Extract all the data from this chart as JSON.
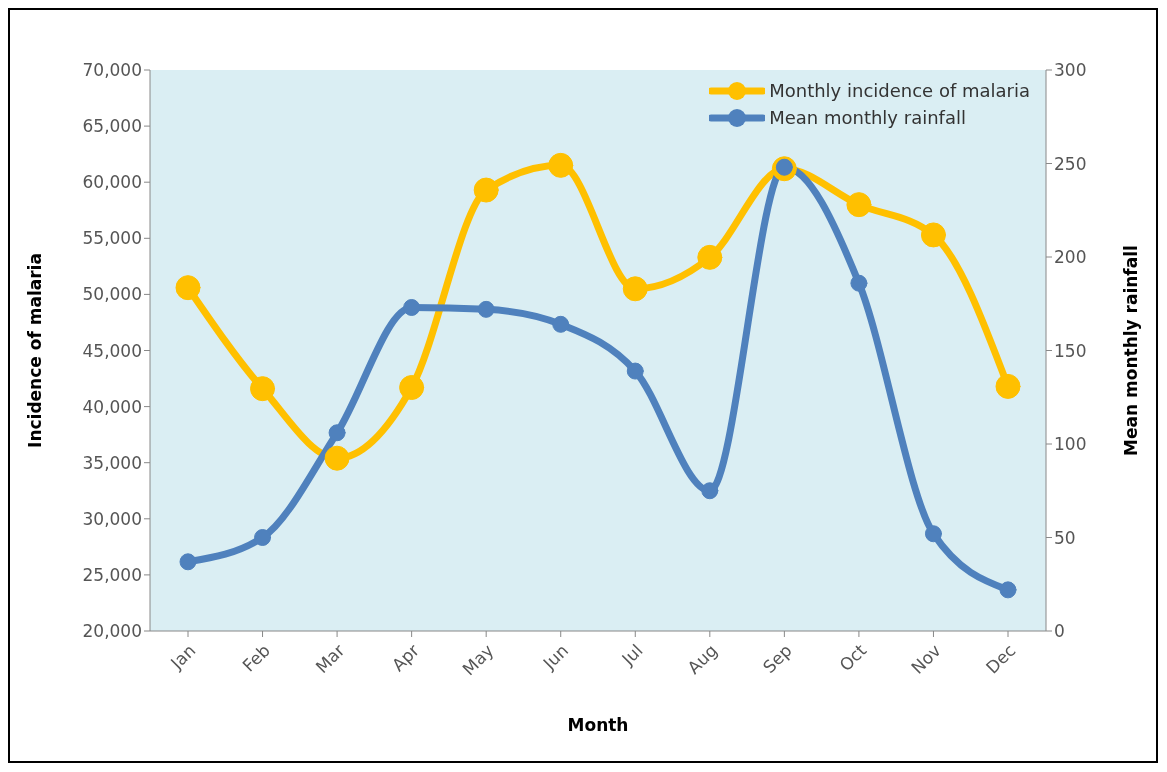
{
  "chart_data": {
    "type": "line",
    "xlabel": "Month",
    "ylabel": "Incidence of malaria",
    "y2label": "Mean monthly rainfall",
    "categories": [
      "Jan",
      "Feb",
      "Mar",
      "Apr",
      "May",
      "Jun",
      "Jul",
      "Aug",
      "Sep",
      "Oct",
      "Nov",
      "Dec"
    ],
    "series": [
      {
        "name": "Monthly incidence of malaria",
        "color": "#ffc000",
        "values": [
          50600,
          41600,
          35400,
          41700,
          59300,
          61500,
          50500,
          53300,
          61200,
          58000,
          55300,
          41800
        ]
      },
      {
        "name": "Mean monthly rainfall",
        "color": "#4f81bd",
        "axis": "y2",
        "values": [
          37,
          50,
          106,
          173,
          172,
          164,
          139,
          75,
          248,
          186,
          52,
          22
        ]
      }
    ],
    "ylim": [
      20000,
      70000
    ],
    "yticks": [
      {
        "value": 20000,
        "label": "20,000"
      },
      {
        "value": 25000,
        "label": "25,000"
      },
      {
        "value": 30000,
        "label": "30,000"
      },
      {
        "value": 35000,
        "label": "35,000"
      },
      {
        "value": 40000,
        "label": "40,000"
      },
      {
        "value": 45000,
        "label": "45,000"
      },
      {
        "value": 50000,
        "label": "50,000"
      },
      {
        "value": 55000,
        "label": "55,000"
      },
      {
        "value": 60000,
        "label": "60,000"
      },
      {
        "value": 65000,
        "label": "65,000"
      },
      {
        "value": 70000,
        "label": "70,000"
      }
    ],
    "y2lim": [
      0,
      300
    ],
    "y2ticks": [
      0,
      50,
      100,
      150,
      200,
      250,
      300
    ],
    "legend": "top right",
    "marker": "circle",
    "line_style": "solid"
  }
}
